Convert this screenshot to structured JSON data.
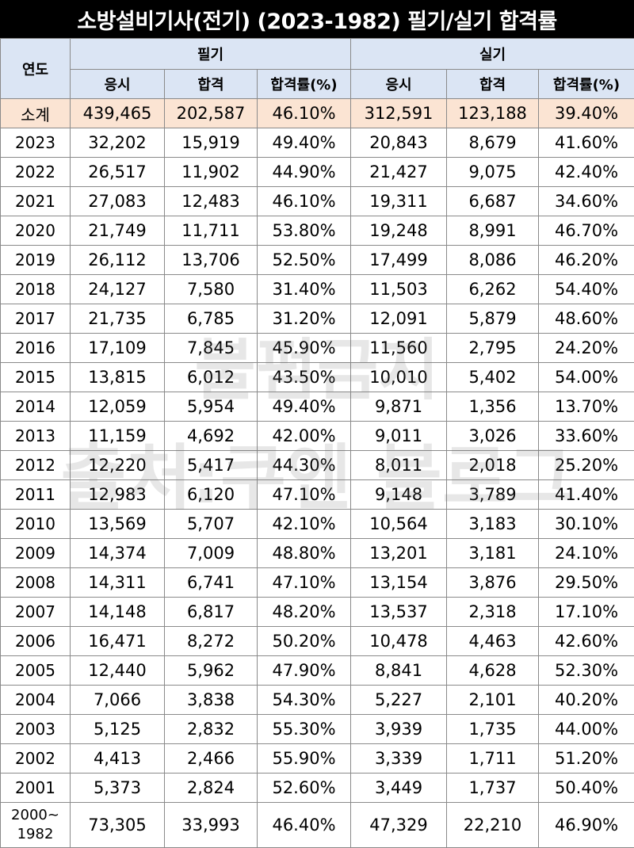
{
  "title": "소방설비기사(전기) (2023-1982) 필기/실기 합격률",
  "header": {
    "year": "연도",
    "written": "필기",
    "practical": "실기",
    "applicants": "응시",
    "passed": "합격",
    "rate": "합격률(%)"
  },
  "rows": [
    {
      "year": "소계",
      "w_app": "439,465",
      "w_pass": "202,587",
      "w_rate": "46.10%",
      "p_app": "312,591",
      "p_pass": "123,188",
      "p_rate": "39.40%"
    },
    {
      "year": "2023",
      "w_app": "32,202",
      "w_pass": "15,919",
      "w_rate": "49.40%",
      "p_app": "20,843",
      "p_pass": "8,679",
      "p_rate": "41.60%"
    },
    {
      "year": "2022",
      "w_app": "26,517",
      "w_pass": "11,902",
      "w_rate": "44.90%",
      "p_app": "21,427",
      "p_pass": "9,075",
      "p_rate": "42.40%"
    },
    {
      "year": "2021",
      "w_app": "27,083",
      "w_pass": "12,483",
      "w_rate": "46.10%",
      "p_app": "19,311",
      "p_pass": "6,687",
      "p_rate": "34.60%"
    },
    {
      "year": "2020",
      "w_app": "21,749",
      "w_pass": "11,711",
      "w_rate": "53.80%",
      "p_app": "19,248",
      "p_pass": "8,991",
      "p_rate": "46.70%"
    },
    {
      "year": "2019",
      "w_app": "26,112",
      "w_pass": "13,706",
      "w_rate": "52.50%",
      "p_app": "17,499",
      "p_pass": "8,086",
      "p_rate": "46.20%"
    },
    {
      "year": "2018",
      "w_app": "24,127",
      "w_pass": "7,580",
      "w_rate": "31.40%",
      "p_app": "11,503",
      "p_pass": "6,262",
      "p_rate": "54.40%"
    },
    {
      "year": "2017",
      "w_app": "21,735",
      "w_pass": "6,785",
      "w_rate": "31.20%",
      "p_app": "12,091",
      "p_pass": "5,879",
      "p_rate": "48.60%"
    },
    {
      "year": "2016",
      "w_app": "17,109",
      "w_pass": "7,845",
      "w_rate": "45.90%",
      "p_app": "11,560",
      "p_pass": "2,795",
      "p_rate": "24.20%"
    },
    {
      "year": "2015",
      "w_app": "13,815",
      "w_pass": "6,012",
      "w_rate": "43.50%",
      "p_app": "10,010",
      "p_pass": "5,402",
      "p_rate": "54.00%"
    },
    {
      "year": "2014",
      "w_app": "12,059",
      "w_pass": "5,954",
      "w_rate": "49.40%",
      "p_app": "9,871",
      "p_pass": "1,356",
      "p_rate": "13.70%"
    },
    {
      "year": "2013",
      "w_app": "11,159",
      "w_pass": "4,692",
      "w_rate": "42.00%",
      "p_app": "9,011",
      "p_pass": "3,026",
      "p_rate": "33.60%"
    },
    {
      "year": "2012",
      "w_app": "12,220",
      "w_pass": "5,417",
      "w_rate": "44.30%",
      "p_app": "8,011",
      "p_pass": "2,018",
      "p_rate": "25.20%"
    },
    {
      "year": "2011",
      "w_app": "12,983",
      "w_pass": "6,120",
      "w_rate": "47.10%",
      "p_app": "9,148",
      "p_pass": "3,789",
      "p_rate": "41.40%"
    },
    {
      "year": "2010",
      "w_app": "13,569",
      "w_pass": "5,707",
      "w_rate": "42.10%",
      "p_app": "10,564",
      "p_pass": "3,183",
      "p_rate": "30.10%"
    },
    {
      "year": "2009",
      "w_app": "14,374",
      "w_pass": "7,009",
      "w_rate": "48.80%",
      "p_app": "13,201",
      "p_pass": "3,181",
      "p_rate": "24.10%"
    },
    {
      "year": "2008",
      "w_app": "14,311",
      "w_pass": "6,741",
      "w_rate": "47.10%",
      "p_app": "13,154",
      "p_pass": "3,876",
      "p_rate": "29.50%"
    },
    {
      "year": "2007",
      "w_app": "14,148",
      "w_pass": "6,817",
      "w_rate": "48.20%",
      "p_app": "13,537",
      "p_pass": "2,318",
      "p_rate": "17.10%"
    },
    {
      "year": "2006",
      "w_app": "16,471",
      "w_pass": "8,272",
      "w_rate": "50.20%",
      "p_app": "10,478",
      "p_pass": "4,463",
      "p_rate": "42.60%"
    },
    {
      "year": "2005",
      "w_app": "12,440",
      "w_pass": "5,962",
      "w_rate": "47.90%",
      "p_app": "8,841",
      "p_pass": "4,628",
      "p_rate": "52.30%"
    },
    {
      "year": "2004",
      "w_app": "7,066",
      "w_pass": "3,838",
      "w_rate": "54.30%",
      "p_app": "5,227",
      "p_pass": "2,101",
      "p_rate": "40.20%"
    },
    {
      "year": "2003",
      "w_app": "5,125",
      "w_pass": "2,832",
      "w_rate": "55.30%",
      "p_app": "3,939",
      "p_pass": "1,735",
      "p_rate": "44.00%"
    },
    {
      "year": "2002",
      "w_app": "4,413",
      "w_pass": "2,466",
      "w_rate": "55.90%",
      "p_app": "3,339",
      "p_pass": "1,711",
      "p_rate": "51.20%"
    },
    {
      "year": "2001",
      "w_app": "5,373",
      "w_pass": "2,824",
      "w_rate": "52.60%",
      "p_app": "3,449",
      "p_pass": "1,737",
      "p_rate": "50.40%"
    },
    {
      "year": "2000~\n1982",
      "w_app": "73,305",
      "w_pass": "33,993",
      "w_rate": "46.40%",
      "p_app": "47,329",
      "p_pass": "22,210",
      "p_rate": "46.90%"
    }
  ],
  "watermark": {
    "line1": "불펌금지",
    "line2": "출처:쿠엔 블로그"
  },
  "colors": {
    "title_bg": "#000000",
    "header_bg": "#dbe5f4",
    "subtotal_bg": "#fbe4d3"
  }
}
